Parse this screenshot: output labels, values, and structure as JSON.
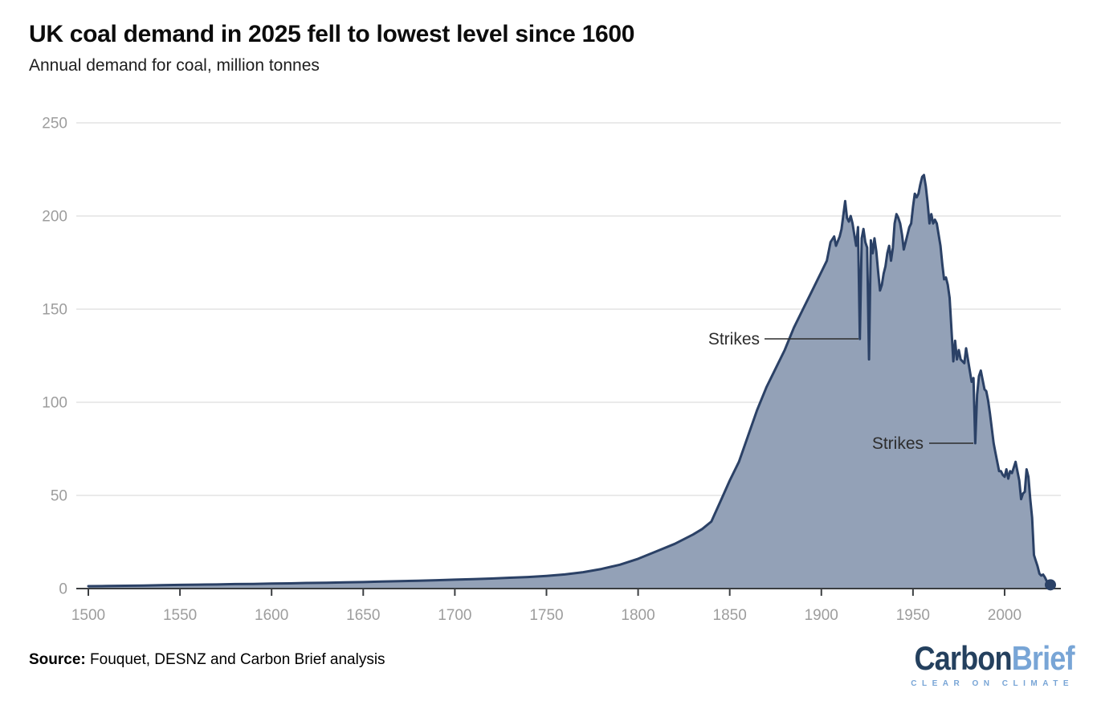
{
  "header": {
    "title": "UK coal demand in 2025 fell to lowest level since 1600",
    "subtitle": "Annual demand for coal, million tonnes"
  },
  "chart_data": {
    "type": "area",
    "title": "UK coal demand in 2025 fell to lowest level since 1600",
    "subtitle": "Annual demand for coal, million tonnes",
    "series_name": "UK annual coal demand, million tonnes",
    "xlabel": "",
    "ylabel": "",
    "xlim": [
      1500,
      2025
    ],
    "ylim": [
      0,
      250
    ],
    "xticks": [
      1500,
      1550,
      1600,
      1650,
      1700,
      1750,
      1800,
      1850,
      1900,
      1950,
      2000
    ],
    "yticks": [
      0,
      50,
      100,
      150,
      200,
      250
    ],
    "grid": "horizontal",
    "legend": "none",
    "x": [
      1500,
      1510,
      1520,
      1530,
      1540,
      1550,
      1560,
      1570,
      1580,
      1590,
      1600,
      1610,
      1620,
      1630,
      1640,
      1650,
      1660,
      1670,
      1680,
      1690,
      1700,
      1710,
      1720,
      1730,
      1740,
      1750,
      1760,
      1770,
      1780,
      1790,
      1800,
      1810,
      1820,
      1830,
      1835,
      1840,
      1845,
      1850,
      1855,
      1860,
      1865,
      1870,
      1875,
      1880,
      1885,
      1890,
      1895,
      1900,
      1903,
      1905,
      1907,
      1908,
      1910,
      1911,
      1913,
      1914,
      1915,
      1916,
      1917,
      1918,
      1919,
      1920,
      1921,
      1922,
      1923,
      1924,
      1925,
      1926,
      1927,
      1928,
      1929,
      1930,
      1931,
      1932,
      1933,
      1934,
      1935,
      1936,
      1937,
      1938,
      1939,
      1940,
      1941,
      1942,
      1943,
      1944,
      1945,
      1946,
      1947,
      1948,
      1949,
      1950,
      1951,
      1952,
      1953,
      1954,
      1955,
      1956,
      1957,
      1958,
      1959,
      1960,
      1961,
      1962,
      1963,
      1964,
      1965,
      1966,
      1967,
      1968,
      1969,
      1970,
      1971,
      1972,
      1973,
      1974,
      1975,
      1976,
      1977,
      1978,
      1979,
      1980,
      1981,
      1982,
      1983,
      1984,
      1985,
      1986,
      1987,
      1988,
      1989,
      1990,
      1991,
      1992,
      1993,
      1994,
      1995,
      1996,
      1997,
      1998,
      1999,
      2000,
      2001,
      2002,
      2003,
      2004,
      2005,
      2006,
      2007,
      2008,
      2009,
      2010,
      2011,
      2012,
      2013,
      2014,
      2015,
      2016,
      2017,
      2018,
      2019,
      2020,
      2021,
      2022,
      2023,
      2024,
      2025
    ],
    "values": [
      1.3,
      1.4,
      1.5,
      1.6,
      1.8,
      2.0,
      2.1,
      2.2,
      2.4,
      2.5,
      2.7,
      2.8,
      3.0,
      3.1,
      3.3,
      3.5,
      3.8,
      4.0,
      4.2,
      4.5,
      4.8,
      5.1,
      5.4,
      5.8,
      6.2,
      6.8,
      7.6,
      8.8,
      10.5,
      12.8,
      16,
      20,
      24,
      29,
      32,
      36,
      47,
      58,
      68,
      82,
      96,
      108,
      118,
      128,
      140,
      150,
      160,
      170,
      176,
      186,
      189,
      184,
      189,
      193,
      208,
      199,
      197,
      200,
      196,
      190,
      184,
      194,
      134,
      188,
      193,
      186,
      183,
      123,
      187,
      180,
      188,
      181,
      170,
      160,
      163,
      169,
      173,
      180,
      184,
      176,
      183,
      196,
      201,
      199,
      196,
      190,
      182,
      186,
      190,
      194,
      196,
      205,
      212,
      210,
      212,
      217,
      221,
      222,
      216,
      207,
      196,
      201,
      196,
      198,
      196,
      190,
      184,
      174,
      166,
      167,
      163,
      156,
      139,
      122,
      133,
      123,
      128,
      123,
      122,
      121,
      129,
      123,
      117,
      111,
      113,
      78,
      104,
      114,
      117,
      112,
      107,
      106,
      101,
      94,
      86,
      78,
      73,
      68,
      63,
      63,
      61,
      60,
      64,
      59,
      63,
      62,
      65,
      68,
      63,
      58,
      48,
      51,
      52,
      64,
      60,
      48,
      38,
      18,
      15,
      12,
      8,
      7,
      7.5,
      6,
      4,
      2.5,
      2
    ],
    "annotations": [
      {
        "label": "Strikes",
        "year": 1921,
        "value": 134
      },
      {
        "label": "Strikes",
        "year": 1984,
        "value": 78
      }
    ],
    "end_dot": {
      "year": 2025,
      "value": 2
    },
    "colors": {
      "line": "#2b4166",
      "fill": "#93a1b7",
      "grid": "#e4e4e4",
      "axis": "#3b3e41",
      "tick_label": "#9d9d9d"
    }
  },
  "footer": {
    "source_label": "Source:",
    "source_text": " Fouquet, DESNZ and Carbon Brief analysis"
  },
  "logo": {
    "word1": "Carbon",
    "word2": "Brief",
    "tagline": "CLEAR ON CLIMATE"
  }
}
